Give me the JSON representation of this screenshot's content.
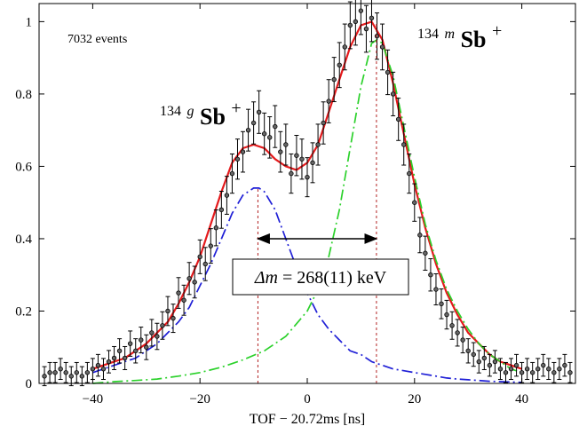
{
  "chart_data": {
    "type": "scatter",
    "title": "",
    "xlabel": "TOF − 20.72ms [ns]",
    "ylabel": "",
    "xlim": [
      -50,
      50
    ],
    "ylim": [
      0,
      1.05
    ],
    "x_ticks": [
      -40,
      -20,
      0,
      20,
      40
    ],
    "x_tick_labels": [
      "−40",
      "−20",
      "0",
      "20",
      "40"
    ],
    "y_ticks": [
      0,
      0.2,
      0.4,
      0.6,
      0.8,
      1
    ],
    "y_tick_labels": [
      "0",
      "0.2",
      "0.4",
      "0.6",
      "0.8",
      "1"
    ],
    "grid": false,
    "annotations": {
      "events": "7032 events",
      "ground_mass": "134",
      "ground_state": "g",
      "ground_element": "Sb",
      "ground_charge": "+",
      "isomer_mass": "134",
      "isomer_state": "m",
      "isomer_element": "Sb",
      "isomer_charge": "+",
      "delta_label": "Δm",
      "delta_value": " = 268(11) keV"
    },
    "peaks": {
      "ground_center": -9.2,
      "isomer_center": 12.9,
      "arrow_y": 0.4
    },
    "series": [
      {
        "kind": "data",
        "style": "points with error bars",
        "color": "#000000",
        "x": [
          -49,
          -48,
          -47,
          -46,
          -45,
          -44,
          -43,
          -42,
          -41,
          -40,
          -39,
          -38,
          -37,
          -36,
          -35,
          -34,
          -33,
          -32,
          -31,
          -30,
          -29,
          -28,
          -27,
          -26,
          -25,
          -24,
          -23,
          -22,
          -21,
          -20,
          -19,
          -18,
          -17,
          -16,
          -15,
          -14,
          -13,
          -12,
          -11,
          -10,
          -9,
          -8,
          -7,
          -6,
          -5,
          -4,
          -3,
          -2,
          -1,
          0,
          1,
          2,
          3,
          4,
          5,
          6,
          7,
          8,
          9,
          10,
          11,
          12,
          13,
          14,
          15,
          16,
          17,
          18,
          19,
          20,
          21,
          22,
          23,
          24,
          25,
          26,
          27,
          28,
          29,
          30,
          31,
          32,
          33,
          34,
          35,
          36,
          37,
          38,
          39,
          40,
          41,
          42,
          43,
          44,
          45,
          46,
          47,
          48,
          49
        ],
        "y": [
          0.02,
          0.03,
          0.03,
          0.04,
          0.03,
          0.02,
          0.03,
          0.02,
          0.03,
          0.04,
          0.05,
          0.04,
          0.06,
          0.07,
          0.09,
          0.07,
          0.11,
          0.09,
          0.12,
          0.1,
          0.14,
          0.13,
          0.16,
          0.2,
          0.18,
          0.25,
          0.23,
          0.29,
          0.28,
          0.35,
          0.33,
          0.38,
          0.43,
          0.48,
          0.52,
          0.58,
          0.62,
          0.64,
          0.7,
          0.72,
          0.75,
          0.69,
          0.68,
          0.71,
          0.64,
          0.66,
          0.58,
          0.63,
          0.62,
          0.57,
          0.61,
          0.66,
          0.72,
          0.78,
          0.84,
          0.88,
          0.93,
          0.99,
          1.0,
          1.03,
          0.98,
          1.01,
          0.96,
          0.93,
          0.86,
          0.8,
          0.73,
          0.66,
          0.58,
          0.5,
          0.41,
          0.36,
          0.3,
          0.26,
          0.22,
          0.19,
          0.16,
          0.14,
          0.12,
          0.09,
          0.08,
          0.06,
          0.07,
          0.05,
          0.06,
          0.04,
          0.03,
          0.04,
          0.05,
          0.03,
          0.04,
          0.03,
          0.04,
          0.05,
          0.04,
          0.03,
          0.04,
          0.05,
          0.03
        ]
      },
      {
        "kind": "fit",
        "style": "solid",
        "color": "#e41a1c",
        "x": [
          -40,
          -38,
          -36,
          -34,
          -32,
          -30,
          -28,
          -26,
          -24,
          -22,
          -20,
          -18,
          -16,
          -14,
          -12,
          -10,
          -8,
          -6,
          -4,
          -2,
          0,
          2,
          4,
          6,
          8,
          10,
          12,
          14,
          16,
          18,
          20,
          22,
          24,
          26,
          28,
          30,
          32,
          34,
          36,
          38,
          40
        ],
        "y": [
          0.04,
          0.05,
          0.06,
          0.07,
          0.09,
          0.11,
          0.14,
          0.17,
          0.22,
          0.28,
          0.35,
          0.44,
          0.53,
          0.61,
          0.65,
          0.66,
          0.65,
          0.62,
          0.6,
          0.59,
          0.61,
          0.66,
          0.75,
          0.84,
          0.93,
          0.99,
          1.0,
          0.95,
          0.83,
          0.69,
          0.55,
          0.43,
          0.33,
          0.25,
          0.19,
          0.14,
          0.11,
          0.08,
          0.06,
          0.05,
          0.04
        ]
      },
      {
        "kind": "component",
        "style": "dash-dot",
        "color": "#1f1fd6",
        "x": [
          -40,
          -38,
          -36,
          -34,
          -32,
          -30,
          -28,
          -26,
          -24,
          -22,
          -20,
          -18,
          -16,
          -14,
          -12,
          -10,
          -9,
          -8,
          -6,
          -4,
          -2,
          0,
          2,
          4,
          6,
          8,
          10,
          12,
          14,
          16,
          18,
          20,
          22,
          24,
          26,
          28,
          30,
          32,
          34,
          36,
          38,
          40
        ],
        "y": [
          0.03,
          0.04,
          0.05,
          0.06,
          0.07,
          0.09,
          0.11,
          0.14,
          0.17,
          0.21,
          0.27,
          0.33,
          0.4,
          0.47,
          0.52,
          0.54,
          0.54,
          0.53,
          0.48,
          0.4,
          0.32,
          0.25,
          0.19,
          0.15,
          0.12,
          0.09,
          0.08,
          0.06,
          0.05,
          0.04,
          0.035,
          0.03,
          0.025,
          0.02,
          0.015,
          0.012,
          0.01,
          0.008,
          0.006,
          0.005,
          0.004,
          0.003
        ]
      },
      {
        "kind": "component",
        "style": "dash-dot",
        "color": "#2bd12b",
        "x": [
          -40,
          -36,
          -32,
          -28,
          -24,
          -20,
          -16,
          -12,
          -8,
          -4,
          0,
          2,
          4,
          6,
          8,
          10,
          12,
          13,
          14,
          16,
          18,
          20,
          22,
          24,
          26,
          28,
          30,
          32,
          34,
          36,
          38,
          40
        ],
        "y": [
          0.0,
          0.005,
          0.008,
          0.012,
          0.02,
          0.03,
          0.045,
          0.065,
          0.09,
          0.13,
          0.2,
          0.26,
          0.35,
          0.48,
          0.65,
          0.82,
          0.94,
          0.95,
          0.94,
          0.85,
          0.71,
          0.57,
          0.44,
          0.34,
          0.26,
          0.2,
          0.15,
          0.11,
          0.08,
          0.06,
          0.04,
          0.03
        ]
      }
    ]
  }
}
